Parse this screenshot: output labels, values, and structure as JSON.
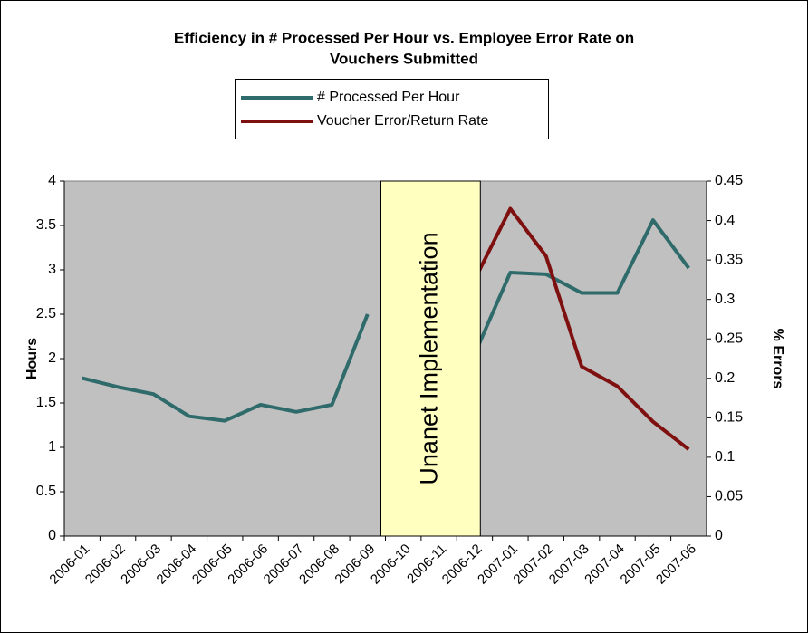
{
  "chart_data": {
    "type": "line",
    "title": [
      "Efficiency in # Processed Per Hour vs. Employee Error Rate on",
      "Vouchers Submitted"
    ],
    "y_label": "Hours",
    "y2_label": "% Errors",
    "annotation": "Unanet Implementation",
    "categories": [
      "2006-01",
      "2006-02",
      "2006-03",
      "2006-04",
      "2006-05",
      "2006-06",
      "2006-07",
      "2006-08",
      "2006-09",
      "2006-10",
      "2006-11",
      "2006-12",
      "2007-01",
      "2007-02",
      "2007-03",
      "2007-04",
      "2007-05",
      "2007-06"
    ],
    "series": [
      {
        "name": "# Processed Per Hour",
        "color": "#2f6b6b",
        "values": [
          1.78,
          1.68,
          1.6,
          1.35,
          1.3,
          1.48,
          1.4,
          1.48,
          2.5,
          null,
          null,
          2.05,
          2.97,
          2.95,
          2.74,
          2.74,
          3.56,
          3.02
        ]
      },
      {
        "name": "Voucher Error/Return Rate",
        "color": "#7f1010",
        "axis": "y2",
        "values": [
          null,
          null,
          null,
          null,
          null,
          null,
          null,
          null,
          null,
          null,
          null,
          0.325,
          0.415,
          0.355,
          0.215,
          0.19,
          0.145,
          0.11
        ]
      }
    ],
    "ylim": [
      0,
      4
    ],
    "yticks": [
      0,
      0.5,
      1,
      1.5,
      2,
      2.5,
      3,
      3.5,
      4
    ],
    "y2lim": [
      0,
      0.45
    ],
    "y2ticks": [
      0,
      0.05,
      0.1,
      0.15,
      0.2,
      0.25,
      0.3,
      0.35,
      0.4,
      0.45
    ],
    "plot_background": "#c0c0c0",
    "grid": false
  }
}
